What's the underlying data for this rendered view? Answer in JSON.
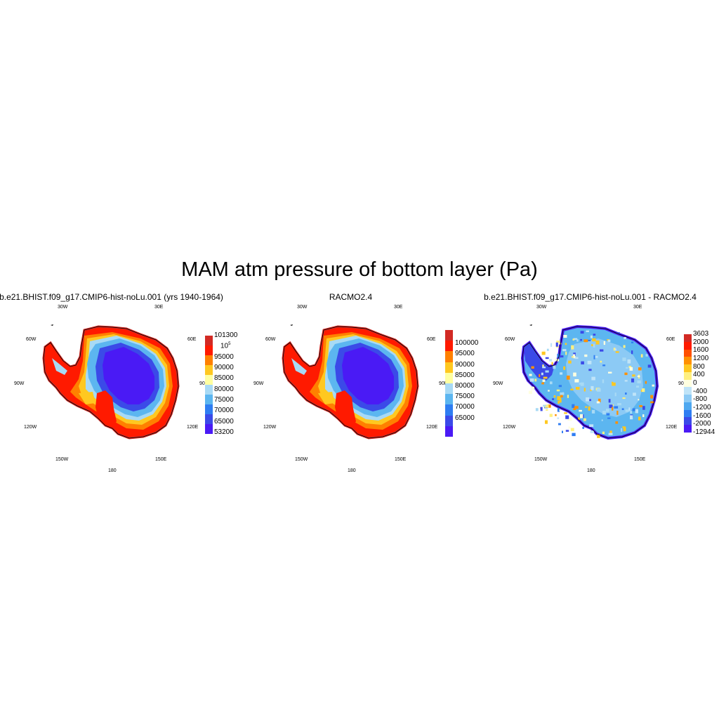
{
  "title": "MAM atm pressure of bottom layer (Pa)",
  "panels": [
    {
      "title": "b.e21.BHIST.f09_g17.CMIP6-hist-noLu.001 (yrs 1940-1964)",
      "lon_labels": [
        "30W",
        "30E",
        "60W",
        "60E",
        "90W",
        "90E",
        "120W",
        "120E",
        "150W",
        "150E",
        "180"
      ],
      "colorbar": {
        "labels": [
          "101300",
          "10^5",
          "95000",
          "90000",
          "85000",
          "80000",
          "75000",
          "70000",
          "65000",
          "53200"
        ],
        "colors": [
          "#d22a24",
          "#ff1a00",
          "#ff8000",
          "#ffc820",
          "#ffffa0",
          "#a8daf5",
          "#5cb6f0",
          "#2f7df2",
          "#3b4ae8",
          "#4a1af5"
        ]
      }
    },
    {
      "title": "RACMO2.4",
      "lon_labels": [
        "30W",
        "30E",
        "60W",
        "60E",
        "90W",
        "90E",
        "120W",
        "120E",
        "150W",
        "150E",
        "180"
      ],
      "colorbar": {
        "labels": [
          "100000",
          "95000",
          "90000",
          "85000",
          "80000",
          "75000",
          "70000",
          "65000"
        ],
        "colors": [
          "#d22a24",
          "#ff1a00",
          "#ff8000",
          "#ffc820",
          "#ffffa0",
          "#a8daf5",
          "#5cb6f0",
          "#2f7df2",
          "#3b4ae8",
          "#4a1af5"
        ]
      }
    },
    {
      "title": "b.e21.BHIST.f09_g17.CMIP6-hist-noLu.001 - RACMO2.4",
      "lon_labels": [
        "30W",
        "30E",
        "60W",
        "60E",
        "90W",
        "90E",
        "120W",
        "120E",
        "150W",
        "150E",
        "180"
      ],
      "colorbar": {
        "labels": [
          "3603",
          "2000",
          "1600",
          "1200",
          "800",
          "400",
          "0",
          "-400",
          "-800",
          "-1200",
          "-1600",
          "-2000",
          "-12944"
        ],
        "colors": [
          "#d22a24",
          "#ff1a00",
          "#ff5000",
          "#ff9000",
          "#ffc820",
          "#fff080",
          "#ffffe0",
          "#c0e4f8",
          "#8ccaf5",
          "#4ea8f0",
          "#2f7df2",
          "#3b4ae8",
          "#4a1af5"
        ]
      }
    }
  ]
}
